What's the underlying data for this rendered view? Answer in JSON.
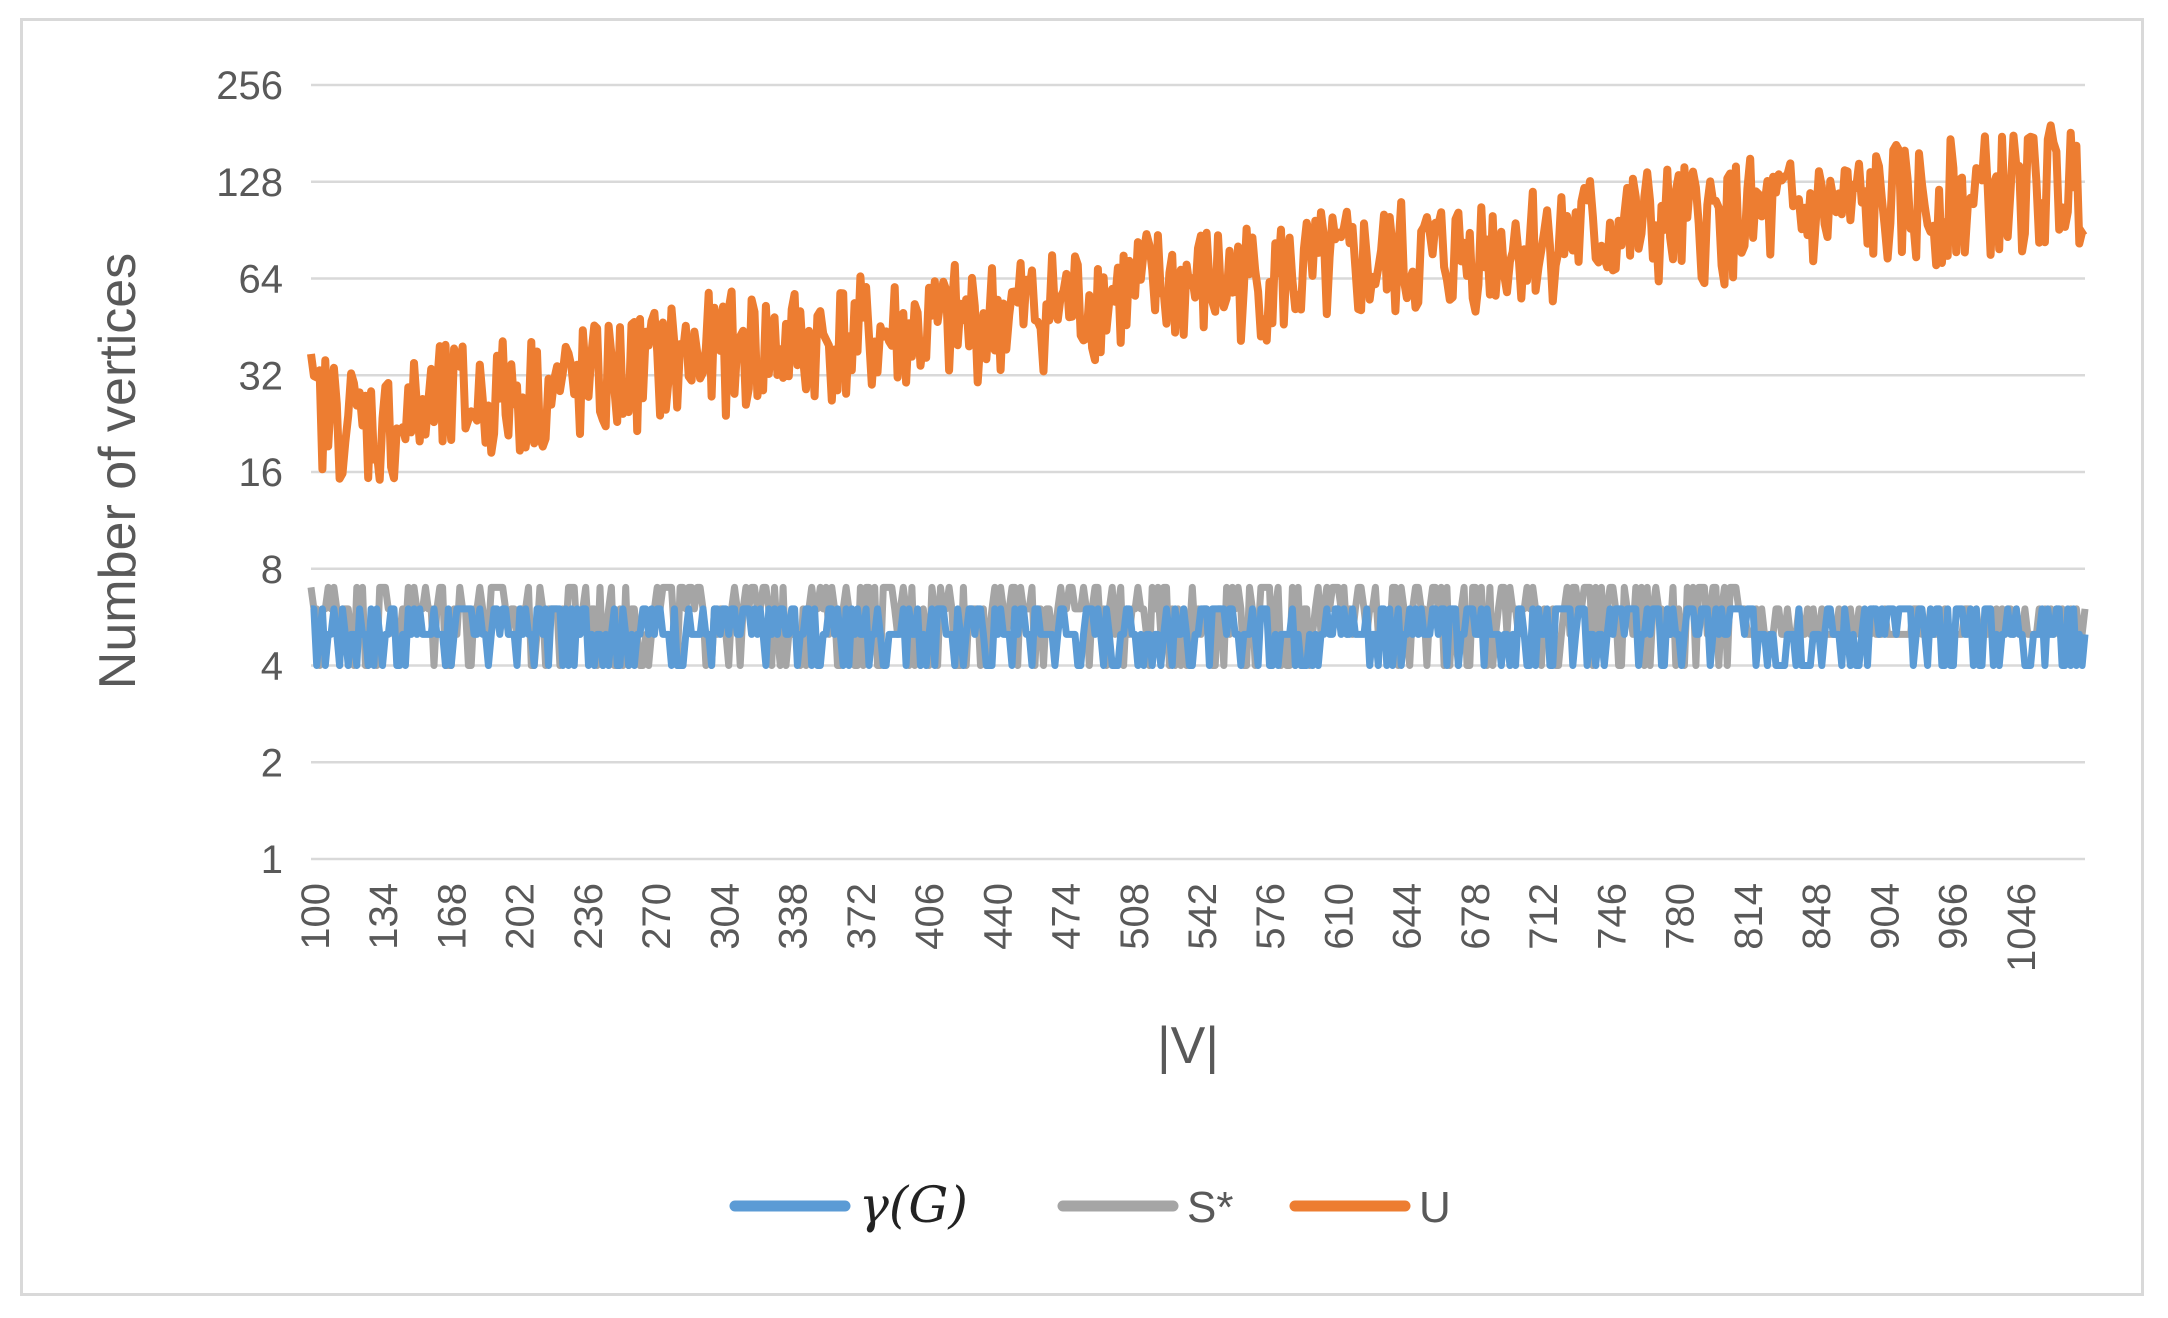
{
  "chart_data": {
    "type": "line",
    "title": "",
    "xlabel": "|V|",
    "ylabel": "Number of vertices",
    "yscale": "log2",
    "ylim": [
      1,
      256
    ],
    "y_ticks": [
      "1",
      "2",
      "4",
      "8",
      "16",
      "32",
      "64",
      "128",
      "256"
    ],
    "x_tick_labels": [
      "100",
      "134",
      "168",
      "202",
      "236",
      "270",
      "304",
      "338",
      "372",
      "406",
      "440",
      "474",
      "508",
      "542",
      "576",
      "610",
      "644",
      "678",
      "712",
      "746",
      "780",
      "814",
      "848",
      "904",
      "966",
      "1046"
    ],
    "grid": true,
    "legend_position": "bottom",
    "series": [
      {
        "name": "γ(G)",
        "color": "#5b9bd5",
        "x": [
          100,
          134,
          168,
          202,
          236,
          270,
          304,
          338,
          372,
          406,
          440,
          474,
          508,
          542,
          576,
          610,
          644,
          678,
          712,
          746,
          780,
          814,
          848,
          904,
          966,
          1046
        ],
        "values": [
          6,
          5,
          5,
          5,
          4,
          5,
          5,
          5,
          5,
          5,
          5,
          5,
          6,
          5,
          5,
          5,
          6,
          5,
          5,
          5,
          5,
          5,
          5,
          5,
          5,
          5
        ]
      },
      {
        "name": "S*",
        "color": "#a5a5a5",
        "x": [
          100,
          134,
          168,
          202,
          236,
          270,
          304,
          338,
          372,
          406,
          440,
          474,
          508,
          542,
          576,
          610,
          644,
          678,
          712,
          746,
          780,
          814,
          848,
          904,
          966,
          1046
        ],
        "values": [
          7,
          5,
          6,
          6,
          5,
          6,
          6,
          6,
          6,
          6,
          6,
          6,
          7,
          6,
          6,
          6,
          7,
          6,
          6,
          6,
          6,
          6,
          6,
          6,
          6,
          6
        ]
      },
      {
        "name": "U",
        "color": "#ed7d31",
        "x": [
          100,
          134,
          168,
          202,
          236,
          270,
          304,
          338,
          372,
          406,
          440,
          474,
          508,
          542,
          576,
          610,
          644,
          678,
          712,
          746,
          780,
          814,
          848,
          904,
          966,
          1046
        ],
        "values": [
          25,
          22,
          26,
          28,
          30,
          35,
          38,
          40,
          42,
          45,
          50,
          55,
          60,
          62,
          65,
          70,
          75,
          82,
          88,
          92,
          95,
          100,
          105,
          110,
          118,
          130
        ]
      }
    ]
  }
}
